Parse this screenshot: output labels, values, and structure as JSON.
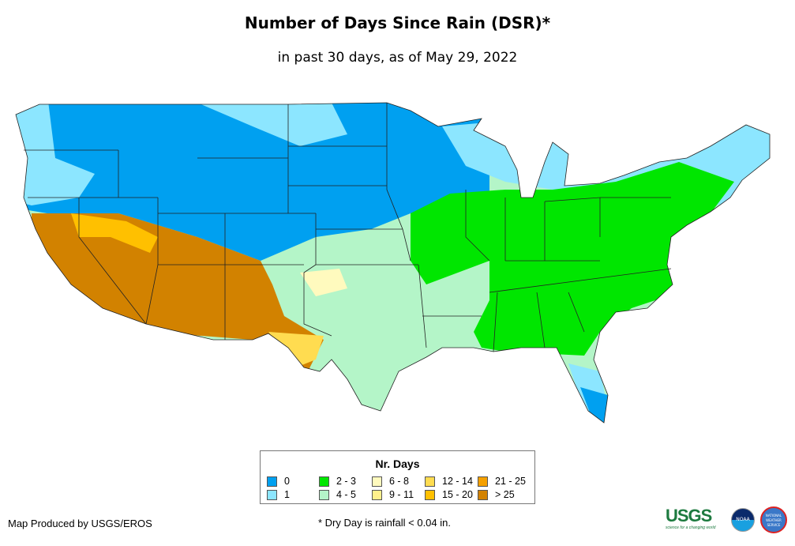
{
  "title": "Number of Days Since Rain (DSR)*",
  "subtitle": "in past 30 days, as of May 29, 2022",
  "legend": {
    "title": "Nr. Days",
    "items": [
      {
        "label": "0",
        "color": "#00a0f0"
      },
      {
        "label": "1",
        "color": "#8ce6ff"
      },
      {
        "label": "2 - 3",
        "color": "#00e600"
      },
      {
        "label": "4 - 5",
        "color": "#b4f5c8"
      },
      {
        "label": "6 - 8",
        "color": "#fffabe"
      },
      {
        "label": "9 - 11",
        "color": "#fff08c"
      },
      {
        "label": "12 - 14",
        "color": "#ffdc50"
      },
      {
        "label": "15 - 20",
        "color": "#ffc000"
      },
      {
        "label": "21 - 25",
        "color": "#f5a000"
      },
      {
        "label": "> 25",
        "color": "#d28200"
      }
    ]
  },
  "footer": {
    "credit": "Map Produced by USGS/EROS",
    "note": "* Dry Day is rainfall < 0.04 in."
  },
  "logos": {
    "usgs": "USGS",
    "usgs_tagline": "science for a changing world",
    "noaa": "NOAA",
    "nws": "NATIONAL WEATHER SERVICE"
  }
}
